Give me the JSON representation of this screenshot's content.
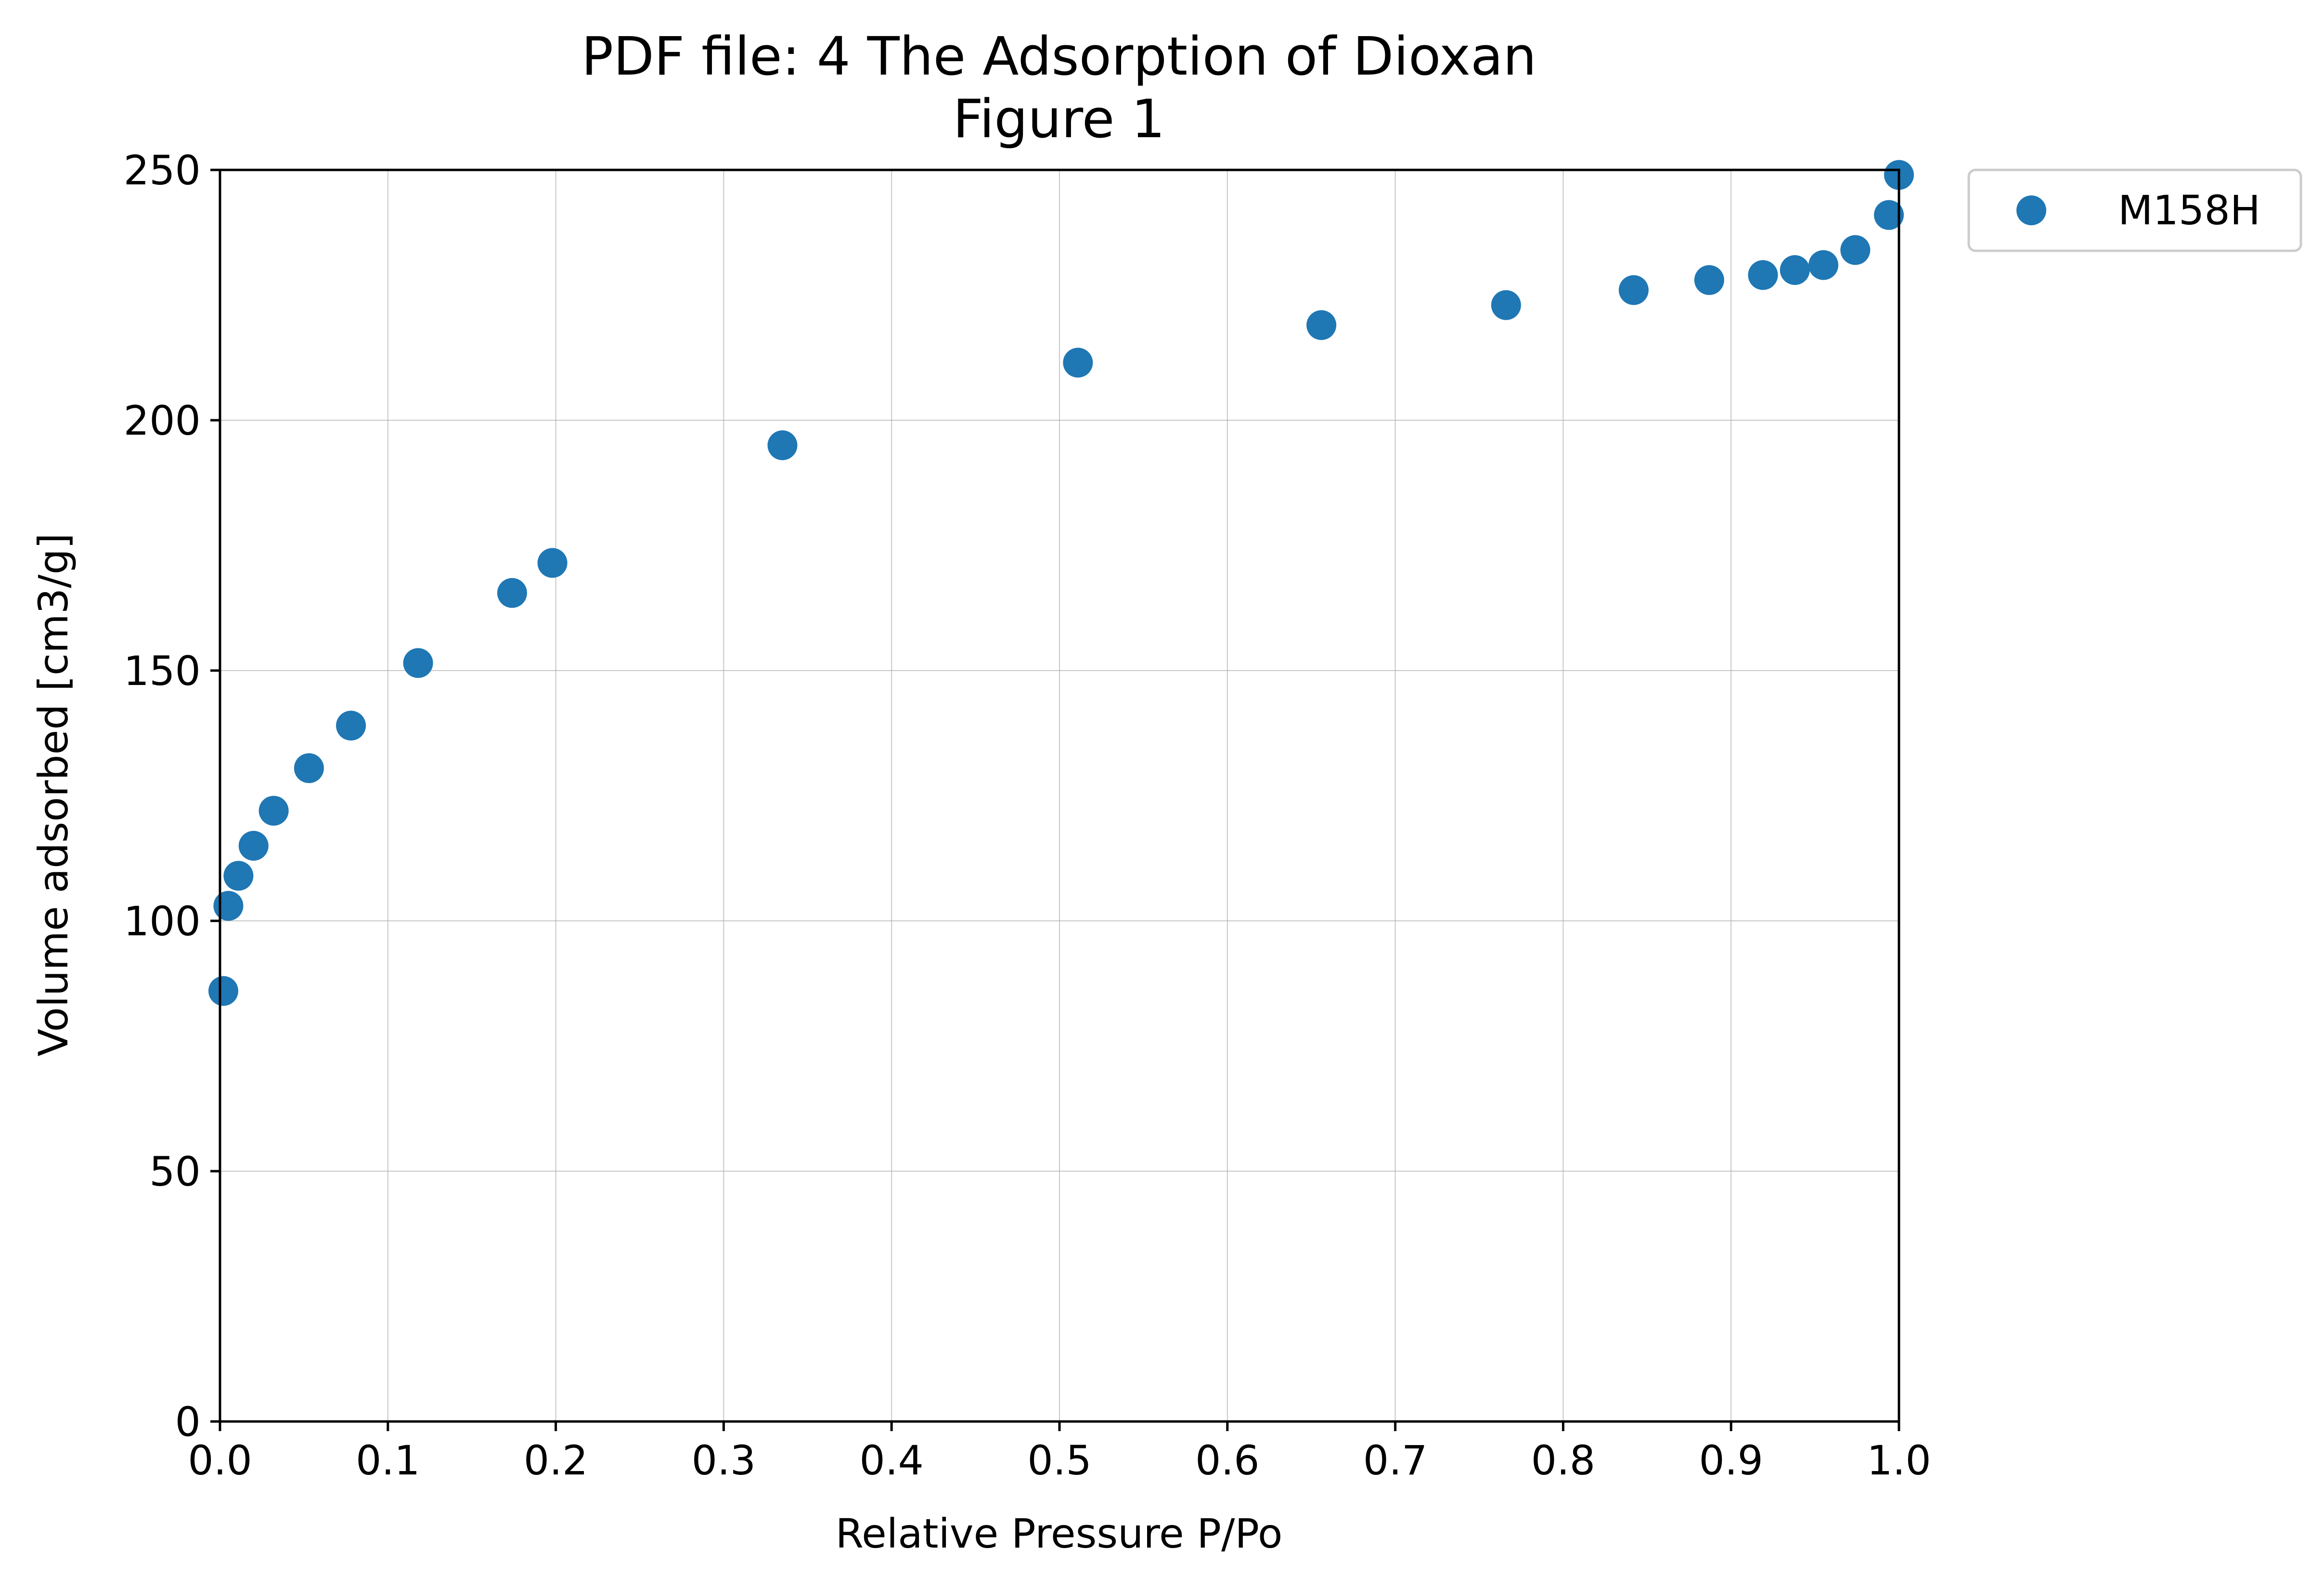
{
  "chart_data": {
    "type": "scatter",
    "title": "PDF file: 4 The Adsorption of Dioxan",
    "subtitle": "Figure 1",
    "xlabel": "Relative Pressure P/Po",
    "ylabel": "Volume adsorbed [cm3/g]",
    "xlim": [
      0.0,
      1.0
    ],
    "ylim": [
      0,
      250
    ],
    "x_ticks": [
      "0.0",
      "0.1",
      "0.2",
      "0.3",
      "0.4",
      "0.5",
      "0.6",
      "0.7",
      "0.8",
      "0.9",
      "1.0"
    ],
    "y_ticks": [
      "0",
      "50",
      "100",
      "150",
      "200",
      "250"
    ],
    "grid": true,
    "legend_position": "outside-top-right",
    "series": [
      {
        "name": "M158H",
        "color": "#1f77b4",
        "marker": "circle",
        "x": [
          0.002,
          0.005,
          0.011,
          0.02,
          0.032,
          0.053,
          0.078,
          0.118,
          0.174,
          0.198,
          0.335,
          0.511,
          0.656,
          0.766,
          0.842,
          0.887,
          0.919,
          0.938,
          0.955,
          0.974,
          0.994,
          1.0
        ],
        "y": [
          86,
          103,
          109,
          115,
          122,
          130.5,
          139,
          151.5,
          165.5,
          171.5,
          195,
          211.5,
          219,
          223,
          226,
          228,
          229,
          230,
          231,
          234,
          241,
          249
        ]
      }
    ]
  }
}
